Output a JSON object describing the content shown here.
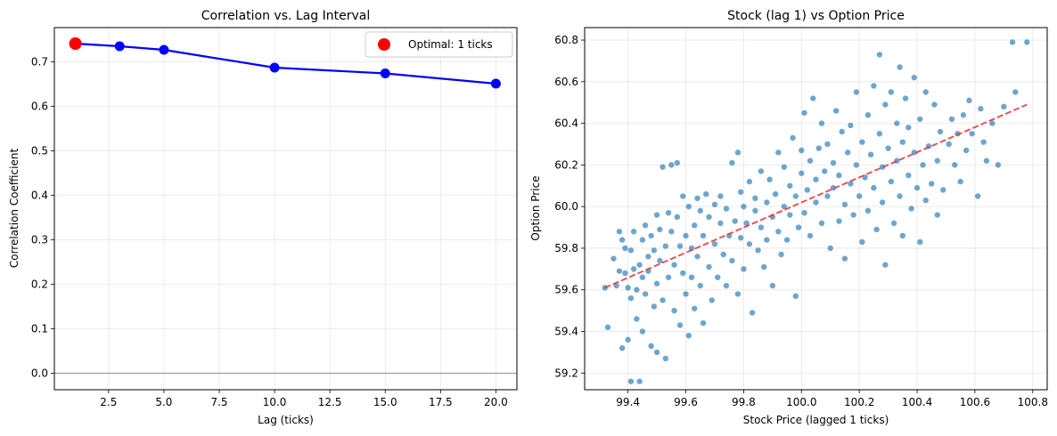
{
  "chart_data": [
    {
      "type": "line",
      "title": "Correlation vs. Lag Interval",
      "xlabel": "Lag (ticks)",
      "ylabel": "Correlation Coefficient",
      "xlim": [
        0.05,
        20.95
      ],
      "ylim": [
        -0.037,
        0.777
      ],
      "xticks": [
        2.5,
        5.0,
        7.5,
        10.0,
        12.5,
        15.0,
        17.5,
        20.0
      ],
      "xtick_labels": [
        "2.5",
        "5.0",
        "7.5",
        "10.0",
        "12.5",
        "15.0",
        "17.5",
        "20.0"
      ],
      "yticks": [
        0.0,
        0.1,
        0.2,
        0.3,
        0.4,
        0.5,
        0.6,
        0.7
      ],
      "ytick_labels": [
        "0.0",
        "0.1",
        "0.2",
        "0.3",
        "0.4",
        "0.5",
        "0.6",
        "0.7"
      ],
      "grid": true,
      "reference_line": {
        "y": 0.0,
        "color": "#999999"
      },
      "series": [
        {
          "x": [
            1,
            3,
            5,
            10,
            15,
            20
          ],
          "values": [
            0.741,
            0.735,
            0.727,
            0.687,
            0.674,
            0.651
          ],
          "color": "#0000ff"
        }
      ],
      "highlight": {
        "x": 1,
        "y": 0.741,
        "color": "#ff0000",
        "label": "Optimal: 1 ticks"
      },
      "legend": {
        "placement": "top-right",
        "entries": [
          "Optimal: 1 ticks"
        ]
      }
    },
    {
      "type": "scatter",
      "title": "Stock (lag 1) vs Option Price",
      "xlabel": "Stock Price (lagged 1 ticks)",
      "ylabel": "Option Price",
      "xlim": [
        99.25,
        100.85
      ],
      "ylim": [
        59.12,
        60.86
      ],
      "xticks": [
        99.4,
        99.6,
        99.8,
        100.0,
        100.2,
        100.4,
        100.6,
        100.8
      ],
      "xtick_labels": [
        "99.4",
        "99.6",
        "99.8",
        "100.0",
        "100.2",
        "100.4",
        "100.6",
        "100.8"
      ],
      "yticks": [
        59.2,
        59.4,
        59.6,
        59.8,
        60.0,
        60.2,
        60.4,
        60.6,
        60.8
      ],
      "ytick_labels": [
        "59.2",
        "59.4",
        "59.6",
        "59.8",
        "60.0",
        "60.2",
        "60.4",
        "60.6",
        "60.8"
      ],
      "grid": true,
      "point_color": "#1f77b4",
      "trend_line": {
        "x": [
          99.32,
          100.78
        ],
        "y": [
          59.61,
          60.49
        ],
        "color": "#e8312f"
      },
      "points": [
        [
          99.32,
          59.61
        ],
        [
          99.33,
          59.42
        ],
        [
          99.35,
          59.75
        ],
        [
          99.36,
          59.62
        ],
        [
          99.37,
          59.88
        ],
        [
          99.37,
          59.69
        ],
        [
          99.38,
          59.84
        ],
        [
          99.38,
          59.32
        ],
        [
          99.39,
          59.68
        ],
        [
          99.39,
          59.8
        ],
        [
          99.4,
          59.61
        ],
        [
          99.4,
          59.36
        ],
        [
          99.41,
          59.79
        ],
        [
          99.41,
          59.56
        ],
        [
          99.41,
          59.16
        ],
        [
          99.42,
          59.7
        ],
        [
          99.42,
          59.88
        ],
        [
          99.43,
          59.6
        ],
        [
          99.43,
          59.46
        ],
        [
          99.44,
          59.16
        ],
        [
          99.44,
          59.72
        ],
        [
          99.45,
          59.84
        ],
        [
          99.45,
          59.66
        ],
        [
          99.45,
          59.4
        ],
        [
          99.46,
          59.91
        ],
        [
          99.46,
          59.58
        ],
        [
          99.47,
          59.76
        ],
        [
          99.47,
          59.69
        ],
        [
          99.48,
          59.33
        ],
        [
          99.48,
          59.86
        ],
        [
          99.49,
          59.52
        ],
        [
          99.49,
          59.79
        ],
        [
          99.5,
          59.96
        ],
        [
          99.5,
          59.63
        ],
        [
          99.5,
          59.3
        ],
        [
          99.51,
          59.89
        ],
        [
          99.51,
          59.74
        ],
        [
          99.52,
          59.55
        ],
        [
          99.52,
          60.19
        ],
        [
          99.53,
          59.81
        ],
        [
          99.53,
          59.27
        ],
        [
          99.54,
          59.97
        ],
        [
          99.54,
          59.66
        ],
        [
          99.55,
          60.2
        ],
        [
          99.55,
          59.88
        ],
        [
          99.56,
          59.72
        ],
        [
          99.56,
          59.5
        ],
        [
          99.57,
          60.21
        ],
        [
          99.57,
          59.95
        ],
        [
          99.58,
          59.81
        ],
        [
          99.58,
          59.43
        ],
        [
          99.59,
          60.05
        ],
        [
          99.59,
          59.68
        ],
        [
          99.6,
          59.86
        ],
        [
          99.6,
          59.58
        ],
        [
          99.61,
          60.0
        ],
        [
          99.61,
          59.38
        ],
        [
          99.62,
          59.8
        ],
        [
          99.62,
          59.66
        ],
        [
          99.63,
          59.91
        ],
        [
          99.63,
          59.51
        ],
        [
          99.64,
          60.04
        ],
        [
          99.64,
          59.76
        ],
        [
          99.65,
          59.98
        ],
        [
          99.65,
          59.62
        ],
        [
          99.66,
          59.86
        ],
        [
          99.66,
          59.44
        ],
        [
          99.67,
          60.06
        ],
        [
          99.68,
          59.71
        ],
        [
          99.68,
          59.95
        ],
        [
          99.69,
          59.55
        ],
        [
          99.7,
          59.82
        ],
        [
          99.7,
          60.01
        ],
        [
          99.71,
          59.66
        ],
        [
          99.72,
          59.92
        ],
        [
          99.72,
          60.05
        ],
        [
          99.73,
          59.77
        ],
        [
          99.74,
          59.62
        ],
        [
          99.74,
          59.99
        ],
        [
          99.75,
          59.86
        ],
        [
          99.76,
          60.21
        ],
        [
          99.76,
          59.74
        ],
        [
          99.77,
          59.93
        ],
        [
          99.78,
          60.26
        ],
        [
          99.78,
          59.58
        ],
        [
          99.79,
          59.85
        ],
        [
          99.79,
          60.07
        ],
        [
          99.8,
          59.7
        ],
        [
          99.8,
          60.0
        ],
        [
          99.81,
          59.92
        ],
        [
          99.82,
          59.82
        ],
        [
          99.82,
          60.12
        ],
        [
          99.83,
          59.49
        ],
        [
          99.84,
          59.98
        ],
        [
          99.84,
          60.04
        ],
        [
          99.85,
          59.79
        ],
        [
          99.86,
          59.9
        ],
        [
          99.86,
          60.17
        ],
        [
          99.87,
          59.71
        ],
        [
          99.88,
          60.02
        ],
        [
          99.88,
          59.84
        ],
        [
          99.89,
          60.13
        ],
        [
          99.9,
          59.95
        ],
        [
          99.9,
          59.62
        ],
        [
          99.91,
          60.06
        ],
        [
          99.92,
          59.88
        ],
        [
          99.92,
          60.26
        ],
        [
          99.93,
          59.77
        ],
        [
          99.94,
          60.0
        ],
        [
          99.94,
          60.19
        ],
        [
          99.95,
          59.84
        ],
        [
          99.96,
          60.1
        ],
        [
          99.96,
          59.96
        ],
        [
          99.97,
          60.33
        ],
        [
          99.98,
          59.57
        ],
        [
          99.98,
          60.05
        ],
        [
          99.99,
          59.9
        ],
        [
          100.0,
          60.16
        ],
        [
          100.0,
          60.27
        ],
        [
          100.01,
          59.97
        ],
        [
          100.01,
          60.45
        ],
        [
          100.02,
          60.08
        ],
        [
          100.03,
          59.86
        ],
        [
          100.03,
          60.22
        ],
        [
          100.04,
          60.52
        ],
        [
          100.05,
          60.02
        ],
        [
          100.05,
          60.13
        ],
        [
          100.06,
          60.28
        ],
        [
          100.07,
          59.92
        ],
        [
          100.07,
          60.4
        ],
        [
          100.08,
          60.17
        ],
        [
          100.09,
          60.05
        ],
        [
          100.09,
          60.3
        ],
        [
          100.1,
          59.8
        ],
        [
          100.11,
          60.21
        ],
        [
          100.11,
          60.09
        ],
        [
          100.12,
          60.46
        ],
        [
          100.13,
          59.93
        ],
        [
          100.13,
          60.15
        ],
        [
          100.14,
          60.36
        ],
        [
          100.15,
          60.01
        ],
        [
          100.15,
          59.75
        ],
        [
          100.16,
          60.26
        ],
        [
          100.17,
          60.11
        ],
        [
          100.17,
          60.39
        ],
        [
          100.18,
          59.96
        ],
        [
          100.19,
          60.55
        ],
        [
          100.19,
          60.2
        ],
        [
          100.2,
          60.05
        ],
        [
          100.21,
          60.31
        ],
        [
          100.21,
          59.83
        ],
        [
          100.22,
          60.14
        ],
        [
          100.23,
          60.44
        ],
        [
          100.23,
          59.98
        ],
        [
          100.24,
          60.25
        ],
        [
          100.25,
          60.09
        ],
        [
          100.25,
          60.58
        ],
        [
          100.26,
          59.89
        ],
        [
          100.27,
          60.35
        ],
        [
          100.27,
          60.73
        ],
        [
          100.28,
          60.19
        ],
        [
          100.28,
          60.02
        ],
        [
          100.29,
          60.49
        ],
        [
          100.29,
          59.72
        ],
        [
          100.3,
          60.28
        ],
        [
          100.31,
          60.12
        ],
        [
          100.31,
          60.55
        ],
        [
          100.32,
          59.92
        ],
        [
          100.33,
          60.4
        ],
        [
          100.33,
          60.22
        ],
        [
          100.34,
          60.67
        ],
        [
          100.34,
          60.05
        ],
        [
          100.35,
          60.31
        ],
        [
          100.35,
          59.86
        ],
        [
          100.36,
          60.52
        ],
        [
          100.37,
          60.15
        ],
        [
          100.37,
          60.38
        ],
        [
          100.38,
          59.99
        ],
        [
          100.39,
          60.26
        ],
        [
          100.39,
          60.62
        ],
        [
          100.4,
          60.09
        ],
        [
          100.41,
          60.42
        ],
        [
          100.41,
          59.83
        ],
        [
          100.42,
          60.2
        ],
        [
          100.43,
          60.55
        ],
        [
          100.43,
          60.03
        ],
        [
          100.44,
          60.29
        ],
        [
          100.45,
          60.11
        ],
        [
          100.46,
          60.49
        ],
        [
          100.47,
          60.22
        ],
        [
          100.47,
          59.96
        ],
        [
          100.48,
          60.36
        ],
        [
          100.49,
          60.08
        ],
        [
          100.51,
          60.3
        ],
        [
          100.52,
          60.42
        ],
        [
          100.53,
          60.2
        ],
        [
          100.54,
          60.35
        ],
        [
          100.55,
          60.12
        ],
        [
          100.56,
          60.44
        ],
        [
          100.57,
          60.27
        ],
        [
          100.58,
          60.51
        ],
        [
          100.59,
          60.35
        ],
        [
          100.61,
          60.05
        ],
        [
          100.62,
          60.47
        ],
        [
          100.63,
          60.31
        ],
        [
          100.64,
          60.22
        ],
        [
          100.66,
          60.4
        ],
        [
          100.68,
          60.2
        ],
        [
          100.7,
          60.48
        ],
        [
          100.73,
          60.79
        ],
        [
          100.74,
          60.55
        ],
        [
          100.78,
          60.79
        ]
      ]
    }
  ]
}
